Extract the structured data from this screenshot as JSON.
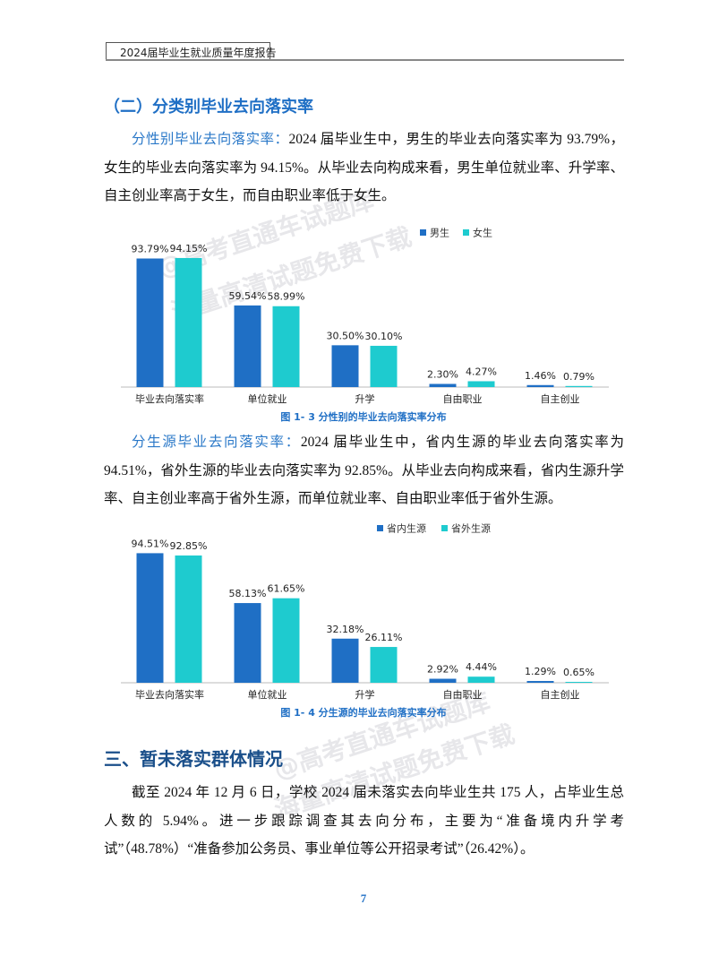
{
  "header": {
    "title": "2024届毕业生就业质量年度报告"
  },
  "section_heading": "（二）分类别毕业去向落实率",
  "paragraphs": [
    {
      "lead": "分性别毕业去向落实率：",
      "text": "2024 届毕业生中，男生的毕业去向落实率为 93.79%，女生的毕业去向落实率为 94.15%。从毕业去向构成来看，男生单位就业率、升学率、自主创业率高于女生，而自由职业率低于女生。"
    },
    {
      "lead": "分生源毕业去向落实率：",
      "text": "2024 届毕业生中，省内生源的毕业去向落实率为 94.51%，省外生源的毕业去向落实率为 92.85%。从毕业去向构成来看，省内生源升学率、自主创业率高于省外生源，而单位就业率、自由职业率低于省外生源。"
    }
  ],
  "chart_data": [
    {
      "type": "bar",
      "title": "图 1- 3  分性别的毕业去向落实率分布",
      "legend": "top-right",
      "categories": [
        "毕业去向落实率",
        "单位就业",
        "升学",
        "自由职业",
        "自主创业"
      ],
      "series": [
        {
          "name": "男生",
          "color": "#1f6fc5",
          "values": [
            93.79,
            59.54,
            30.5,
            2.3,
            1.46
          ],
          "value_labels": [
            "93.79%",
            "59.54%",
            "30.50%",
            "2.30%",
            "1.46%"
          ]
        },
        {
          "name": "女生",
          "color": "#1ecbcf",
          "values": [
            94.15,
            58.99,
            30.1,
            4.27,
            0.79
          ],
          "value_labels": [
            "94.15%",
            "58.99%",
            "30.10%",
            "4.27%",
            "0.79%"
          ]
        }
      ]
    },
    {
      "type": "bar",
      "title": "图 1- 4  分生源的毕业去向落实率分布",
      "legend": "top-right",
      "categories": [
        "毕业去向落实率",
        "单位就业",
        "升学",
        "自由职业",
        "自主创业"
      ],
      "series": [
        {
          "name": "省内生源",
          "color": "#1f6fc5",
          "values": [
            94.51,
            58.13,
            32.18,
            2.92,
            1.29
          ],
          "value_labels": [
            "94.51%",
            "58.13%",
            "32.18%",
            "2.92%",
            "1.29%"
          ]
        },
        {
          "name": "省外生源",
          "color": "#1ecbcf",
          "values": [
            92.85,
            61.65,
            26.11,
            4.44,
            0.65
          ],
          "value_labels": [
            "92.85%",
            "61.65%",
            "26.11%",
            "4.44%",
            "0.65%"
          ]
        }
      ]
    }
  ],
  "section3": {
    "heading": "三、暂未落实群体情况",
    "text": "截至 2024 年 12 月 6 日，学校 2024 届未落实去向毕业生共 175 人，占毕业生总人数的 5.94%。进一步跟踪调查其去向分布，主要为“准备境内升学考试”（48.78%）“准备参加公务员、事业单位等公开招录考试”（26.42%）。"
  },
  "watermark": [
    "@高考直通车试题库",
    "海量高清试题免费下载"
  ],
  "page_number": "7"
}
